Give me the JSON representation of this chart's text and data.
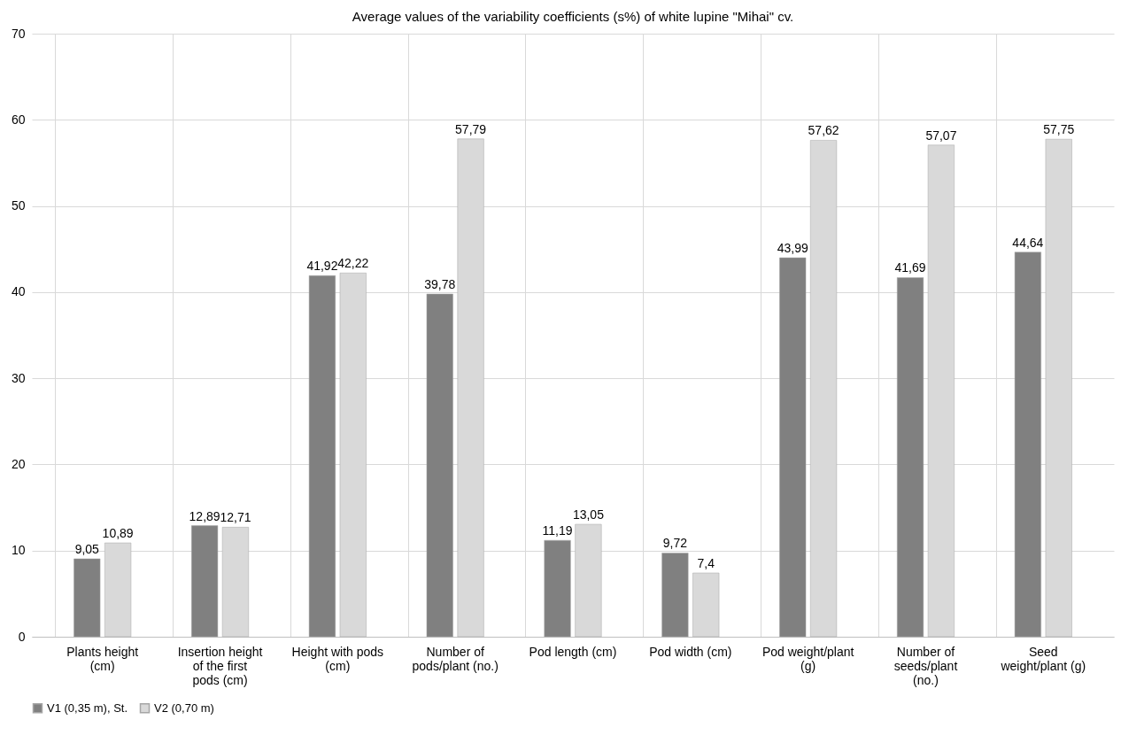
{
  "chart_data": {
    "type": "bar",
    "title": "Average values of the variability coefficients (s%) of white lupine \"Mihai\" cv.",
    "categories": [
      "Plants height (cm)",
      "Insertion height of the first pods (cm)",
      "Height with pods (cm)",
      "Number of pods/plant (no.)",
      "Pod length (cm)",
      "Pod width (cm)",
      "Pod weight/plant (g)",
      "Number of seeds/plant (no.)",
      "Seed weight/plant (g)"
    ],
    "series": [
      {
        "name": "V1 (0,35 m), St.",
        "color": "#808080",
        "values": [
          9.05,
          12.89,
          41.92,
          39.78,
          11.19,
          9.72,
          43.99,
          41.69,
          44.64
        ],
        "value_labels": [
          "9,05",
          "12,89",
          "41,92",
          "39,78",
          "11,19",
          "9,72",
          "43,99",
          "41,69",
          "44,64"
        ]
      },
      {
        "name": "V2 (0,70 m)",
        "color": "#d9d9d9",
        "values": [
          10.89,
          12.71,
          42.22,
          57.79,
          13.05,
          7.4,
          57.62,
          57.07,
          57.75
        ],
        "value_labels": [
          "10,89",
          "12,71",
          "42,22",
          "57,79",
          "13,05",
          "7,4",
          "57,62",
          "57,07",
          "57,75"
        ]
      }
    ],
    "ylim": [
      0,
      70
    ],
    "yticks": [
      0,
      10,
      20,
      30,
      40,
      50,
      60,
      70
    ],
    "grid": true,
    "legend": "bottom"
  }
}
